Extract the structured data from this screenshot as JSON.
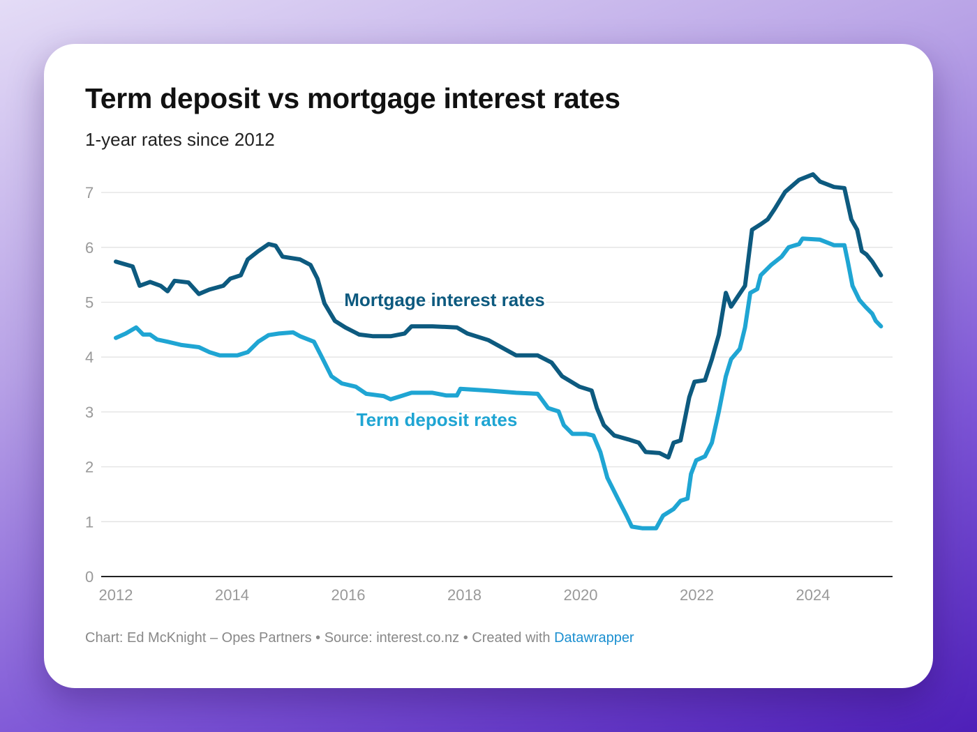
{
  "chart_data": {
    "type": "line",
    "title": "Term deposit vs mortgage interest rates",
    "subtitle": "1-year rates since 2012",
    "xlabel": "",
    "ylabel": "",
    "xlim": [
      2012,
      2025.3
    ],
    "ylim": [
      0,
      7
    ],
    "grid": true,
    "x_ticks": [
      "2012",
      "2014",
      "2016",
      "2018",
      "2020",
      "2022",
      "2024"
    ],
    "y_ticks": [
      "0",
      "1",
      "2",
      "3",
      "4",
      "5",
      "6",
      "7"
    ],
    "series": [
      {
        "name": "Mortgage interest rates",
        "color": "#0d5a7f",
        "x": [
          2012.0,
          2012.29,
          2012.41,
          2012.59,
          2012.77,
          2012.89,
          2013.01,
          2013.25,
          2013.43,
          2013.61,
          2013.85,
          2013.97,
          2014.15,
          2014.27,
          2014.45,
          2014.63,
          2014.75,
          2014.87,
          2015.17,
          2015.35,
          2015.47,
          2015.59,
          2015.77,
          2015.95,
          2016.19,
          2016.43,
          2016.73,
          2016.97,
          2017.09,
          2017.45,
          2017.87,
          2018.05,
          2018.41,
          2018.89,
          2019.26,
          2019.5,
          2019.68,
          2019.98,
          2020.19,
          2020.28,
          2020.4,
          2020.58,
          2020.82,
          2021.0,
          2021.12,
          2021.36,
          2021.51,
          2021.6,
          2021.72,
          2021.87,
          2021.96,
          2022.14,
          2022.26,
          2022.38,
          2022.5,
          2022.59,
          2022.71,
          2022.83,
          2022.89,
          2022.95,
          2023.1,
          2023.22,
          2023.34,
          2023.52,
          2023.76,
          2024.0,
          2024.12,
          2024.36,
          2024.54,
          2024.66,
          2024.76,
          2024.84,
          2024.92,
          2025.02,
          2025.17
        ],
        "y": [
          5.74,
          5.65,
          5.3,
          5.37,
          5.3,
          5.2,
          5.39,
          5.36,
          5.15,
          5.23,
          5.3,
          5.43,
          5.49,
          5.78,
          5.93,
          6.06,
          6.03,
          5.83,
          5.78,
          5.68,
          5.43,
          4.98,
          4.66,
          4.54,
          4.41,
          4.38,
          4.38,
          4.43,
          4.56,
          4.56,
          4.54,
          4.43,
          4.31,
          4.03,
          4.03,
          3.9,
          3.65,
          3.46,
          3.39,
          3.07,
          2.76,
          2.57,
          2.5,
          2.44,
          2.27,
          2.25,
          2.17,
          2.44,
          2.48,
          3.27,
          3.55,
          3.58,
          3.96,
          4.41,
          5.17,
          4.92,
          5.11,
          5.3,
          5.81,
          6.32,
          6.42,
          6.51,
          6.7,
          7.01,
          7.23,
          7.33,
          7.2,
          7.1,
          7.08,
          6.51,
          6.32,
          5.93,
          5.87,
          5.74,
          5.49
        ]
      },
      {
        "name": "Term deposit rates",
        "color": "#1fa5d3",
        "x": [
          2012.0,
          2012.17,
          2012.35,
          2012.47,
          2012.59,
          2012.71,
          2012.89,
          2013.13,
          2013.43,
          2013.61,
          2013.79,
          2014.09,
          2014.27,
          2014.45,
          2014.63,
          2014.81,
          2015.05,
          2015.17,
          2015.41,
          2015.53,
          2015.71,
          2015.89,
          2016.13,
          2016.31,
          2016.61,
          2016.73,
          2016.91,
          2017.09,
          2017.45,
          2017.69,
          2017.87,
          2017.93,
          2018.41,
          2018.89,
          2019.26,
          2019.44,
          2019.62,
          2019.71,
          2019.86,
          2020.1,
          2020.22,
          2020.34,
          2020.46,
          2020.64,
          2020.79,
          2020.88,
          2021.06,
          2021.3,
          2021.42,
          2021.6,
          2021.72,
          2021.84,
          2021.9,
          2021.99,
          2022.14,
          2022.26,
          2022.38,
          2022.5,
          2022.59,
          2022.74,
          2022.83,
          2022.92,
          2023.04,
          2023.1,
          2023.28,
          2023.46,
          2023.58,
          2023.76,
          2023.82,
          2024.12,
          2024.36,
          2024.54,
          2024.6,
          2024.68,
          2024.8,
          2024.9,
          2025.02,
          2025.08,
          2025.17
        ],
        "y": [
          4.35,
          4.43,
          4.54,
          4.41,
          4.41,
          4.32,
          4.28,
          4.22,
          4.18,
          4.09,
          4.03,
          4.03,
          4.09,
          4.28,
          4.4,
          4.43,
          4.45,
          4.38,
          4.28,
          4.03,
          3.65,
          3.52,
          3.46,
          3.33,
          3.29,
          3.23,
          3.29,
          3.35,
          3.35,
          3.3,
          3.3,
          3.42,
          3.39,
          3.35,
          3.33,
          3.07,
          3.01,
          2.76,
          2.6,
          2.6,
          2.57,
          2.27,
          1.8,
          1.42,
          1.11,
          0.91,
          0.88,
          0.88,
          1.11,
          1.23,
          1.38,
          1.42,
          1.87,
          2.12,
          2.19,
          2.44,
          3.01,
          3.65,
          3.96,
          4.15,
          4.54,
          5.17,
          5.24,
          5.49,
          5.68,
          5.83,
          6.0,
          6.06,
          6.16,
          6.14,
          6.04,
          6.04,
          5.74,
          5.3,
          5.04,
          4.92,
          4.79,
          4.66,
          4.56
        ]
      }
    ],
    "annotations": [
      "Mortgage interest rates",
      "Term deposit rates"
    ],
    "legend": "inline labels"
  },
  "footer": {
    "credit": "Chart: Ed McKnight – Opes Partners • Source: interest.co.nz • Created with ",
    "link": "Datawrapper"
  }
}
